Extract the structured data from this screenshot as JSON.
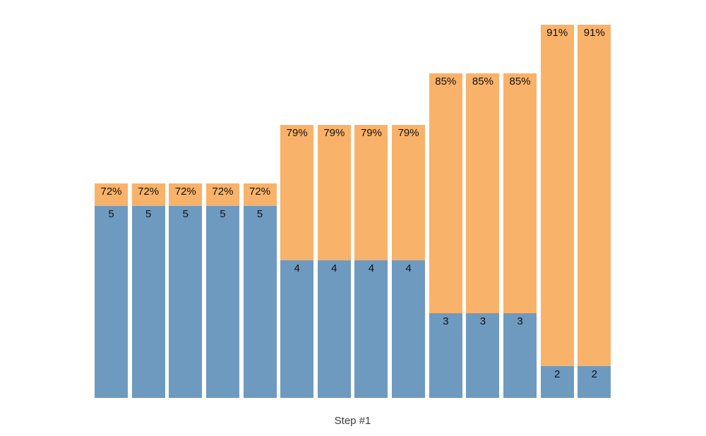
{
  "chart_data": {
    "type": "bar",
    "subtype": "stacked-vertical-columns",
    "title": "",
    "xlabel": "Step #1",
    "legend": "none",
    "axes_visible": false,
    "gridlines": false,
    "background_color": "#ffffff",
    "colors": {
      "bottom_segment": "#6e9ac0",
      "top_segment": "#f9b269",
      "bar_label_text": "#111111",
      "xlabel_text": "#3c3c3c"
    },
    "bars": [
      {
        "percent_label": "72%",
        "value_label": "5",
        "percent": 72,
        "value": 5
      },
      {
        "percent_label": "72%",
        "value_label": "5",
        "percent": 72,
        "value": 5
      },
      {
        "percent_label": "72%",
        "value_label": "5",
        "percent": 72,
        "value": 5
      },
      {
        "percent_label": "72%",
        "value_label": "5",
        "percent": 72,
        "value": 5
      },
      {
        "percent_label": "72%",
        "value_label": "5",
        "percent": 72,
        "value": 5
      },
      {
        "percent_label": "79%",
        "value_label": "4",
        "percent": 79,
        "value": 4
      },
      {
        "percent_label": "79%",
        "value_label": "4",
        "percent": 79,
        "value": 4
      },
      {
        "percent_label": "79%",
        "value_label": "4",
        "percent": 79,
        "value": 4
      },
      {
        "percent_label": "79%",
        "value_label": "4",
        "percent": 79,
        "value": 4
      },
      {
        "percent_label": "85%",
        "value_label": "3",
        "percent": 85,
        "value": 3
      },
      {
        "percent_label": "85%",
        "value_label": "3",
        "percent": 85,
        "value": 3
      },
      {
        "percent_label": "85%",
        "value_label": "3",
        "percent": 85,
        "value": 3
      },
      {
        "percent_label": "91%",
        "value_label": "2",
        "percent": 91,
        "value": 2
      },
      {
        "percent_label": "91%",
        "value_label": "2",
        "percent": 91,
        "value": 2
      }
    ],
    "groups": [
      {
        "percent": 72,
        "value": 5,
        "bar_count": 5
      },
      {
        "percent": 79,
        "value": 4,
        "bar_count": 4
      },
      {
        "percent": 85,
        "value": 3,
        "bar_count": 3
      },
      {
        "percent": 91,
        "value": 2,
        "bar_count": 2
      }
    ]
  }
}
